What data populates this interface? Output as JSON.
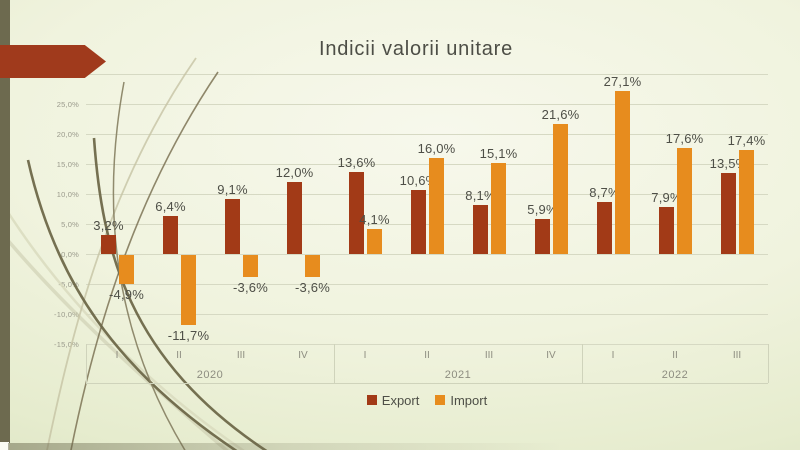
{
  "slide": {
    "title": "Indicii valorii unitare"
  },
  "chart_data": {
    "type": "bar",
    "title": "Indicii valorii unitare",
    "grid": true,
    "legend_position": "bottom",
    "x": {
      "years": [
        {
          "label": "2020",
          "quarters": [
            "I",
            "II",
            "III",
            "IV"
          ]
        },
        {
          "label": "2021",
          "quarters": [
            "I",
            "II",
            "III",
            "IV"
          ]
        },
        {
          "label": "2022",
          "quarters": [
            "I",
            "II",
            "III"
          ]
        }
      ]
    },
    "y_axis": {
      "min": -15,
      "max": 30,
      "step": 5,
      "labels": [
        "30,0%",
        "25,0%",
        "20,0%",
        "15,0%",
        "10,0%",
        "5,0%",
        "0,0%",
        "-5,0%",
        "-10,0%",
        "-15,0%"
      ]
    },
    "series": [
      {
        "name": "Export",
        "color": "#a23a17",
        "values": [
          3.2,
          6.4,
          9.1,
          12.0,
          13.6,
          10.6,
          8.1,
          5.9,
          8.7,
          7.9,
          13.5
        ],
        "labels": [
          "3,2%",
          "6,4%",
          "9,1%",
          "12,0%",
          "13,6%",
          "10,6%",
          "8,1%",
          "5,9%",
          "8,7%",
          "7,9%",
          "13,5%"
        ]
      },
      {
        "name": "Import",
        "color": "#e78c1e",
        "values": [
          -4.9,
          -11.7,
          -3.6,
          -3.6,
          4.1,
          16.0,
          15.1,
          21.6,
          27.1,
          17.6,
          17.4
        ],
        "labels": [
          "-4,9%",
          "-11,7%",
          "-3,6%",
          "-3,6%",
          "4,1%",
          "16,0%",
          "15,1%",
          "21,6%",
          "27,1%",
          "17,6%",
          "17,4%"
        ]
      }
    ],
    "legend": {
      "items": [
        {
          "label": "Export",
          "color": "#a23a17"
        },
        {
          "label": "Import",
          "color": "#e78c1e"
        }
      ]
    }
  }
}
